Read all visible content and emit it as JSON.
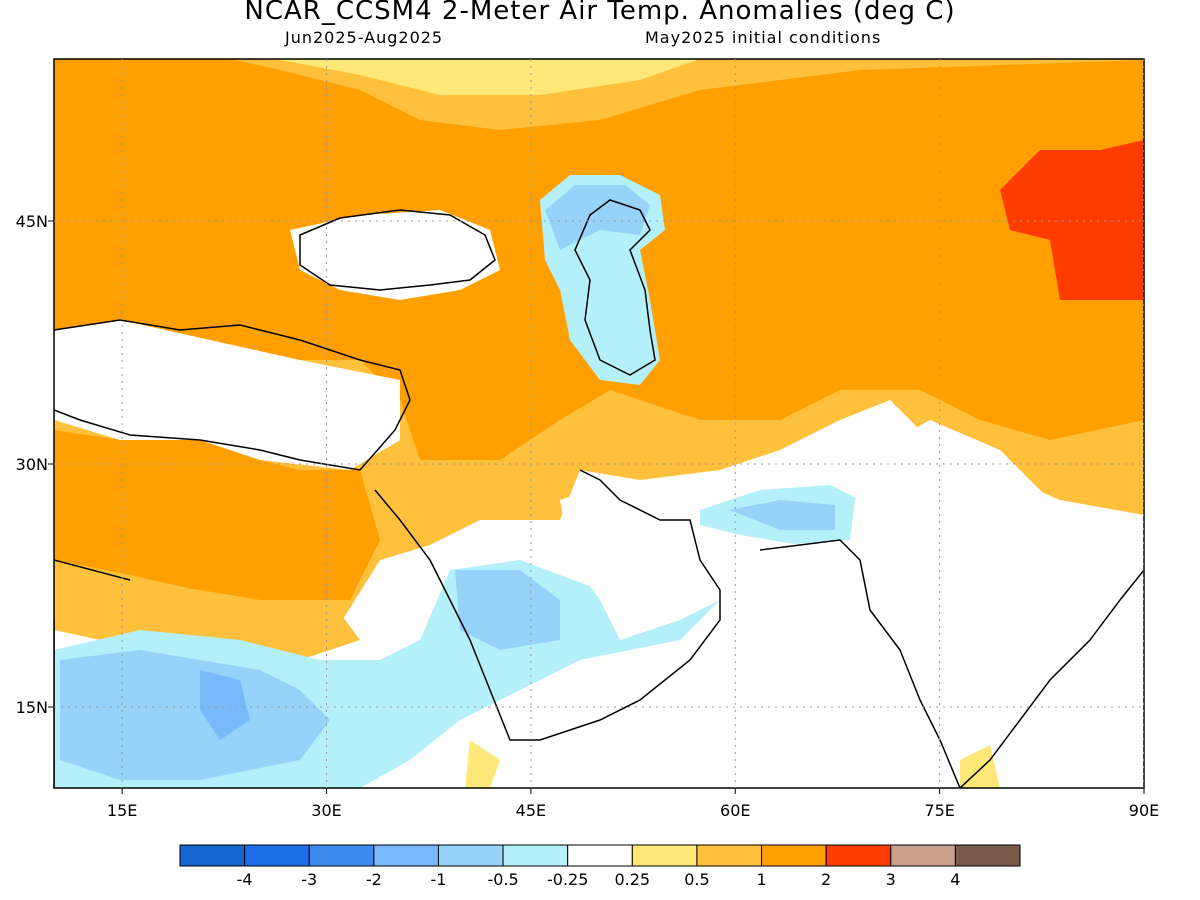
{
  "header": {
    "title": "NCAR_CCSM4 2-Meter Air Temp. Anomalies (deg C)",
    "period": "Jun2025-Aug2025",
    "init": "May2025 initial conditions"
  },
  "map": {
    "lon_range": [
      10,
      90
    ],
    "lat_range": [
      10,
      55
    ],
    "lon_ticks": [
      15,
      30,
      45,
      60,
      75,
      90
    ],
    "lat_ticks": [
      15,
      30,
      45
    ],
    "lon_tick_labels": [
      "15E",
      "30E",
      "45E",
      "60E",
      "75E",
      "90E"
    ],
    "lat_tick_labels": [
      "15N",
      "30N",
      "45N"
    ],
    "grid": "dotted"
  },
  "legend": {
    "labels": [
      "-4",
      "-3",
      "-2",
      "-1",
      "-0.5",
      "-0.25",
      "0.25",
      "0.5",
      "1",
      "2",
      "3",
      "4"
    ],
    "colors": [
      "#1464d2",
      "#1e6eeb",
      "#3c8cf0",
      "#78b9fa",
      "#96d2fa",
      "#b4f0fa",
      "#ffffff",
      "#ffe878",
      "#ffc03c",
      "#ffa000",
      "#ff3c00",
      "#c8a08c",
      "#7a5a4a"
    ]
  }
}
